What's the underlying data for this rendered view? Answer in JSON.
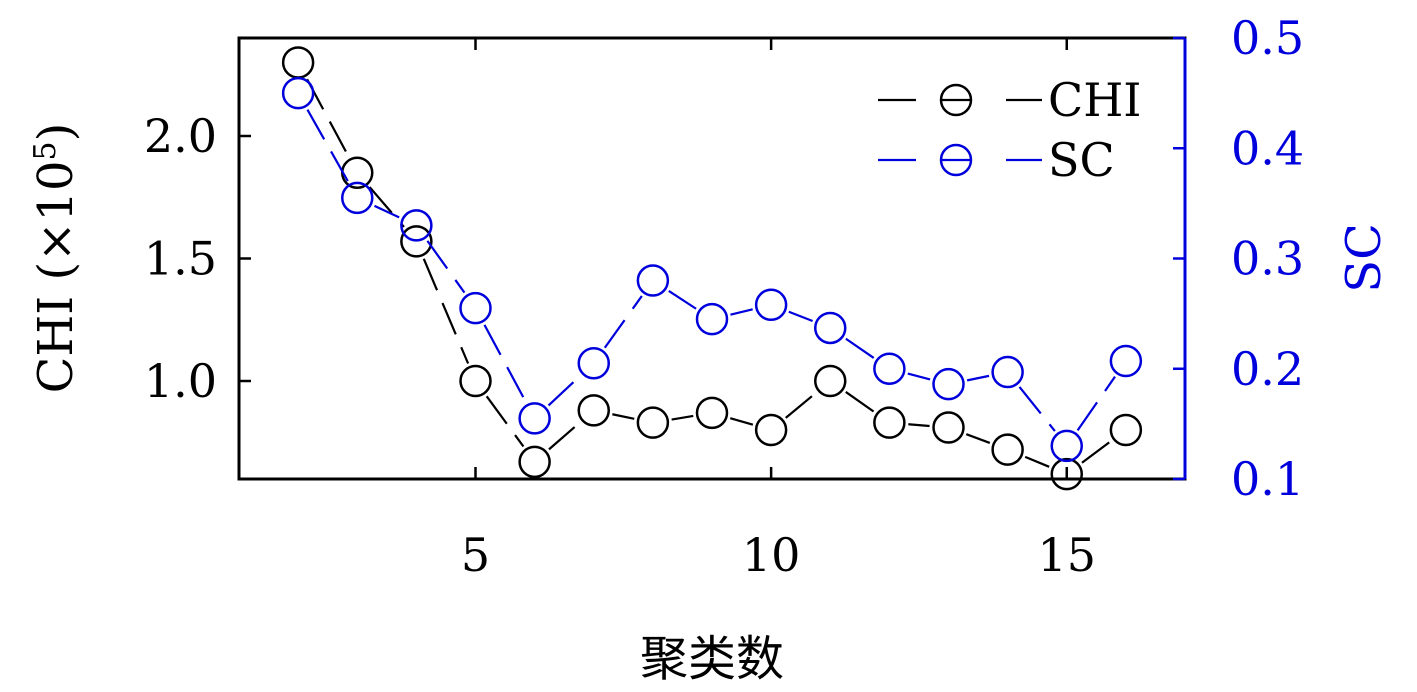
{
  "chart_data": {
    "type": "line",
    "xlabel": "聚类数",
    "ylabel_left": "CHI (×10",
    "ylabel_left_sup": "5",
    "ylabel_left_close": ")",
    "ylabel_right": "SC",
    "xlim": [
      1,
      17
    ],
    "ylim_left": [
      0.6,
      2.4
    ],
    "ylim_right": [
      0.1,
      0.5
    ],
    "x_ticks": [
      5,
      10,
      15
    ],
    "x_tick_labels": [
      "5",
      "10",
      "15"
    ],
    "y_left_ticks": [
      1.0,
      1.5,
      2.0
    ],
    "y_left_tick_labels": [
      "1.0",
      "1.5",
      "2.0"
    ],
    "y_right_ticks": [
      0.1,
      0.2,
      0.3,
      0.4,
      0.5
    ],
    "y_right_tick_labels": [
      "0.1",
      "0.2",
      "0.3",
      "0.4",
      "0.5"
    ],
    "legend_position": "top-right",
    "x": [
      2,
      3,
      4,
      5,
      6,
      7,
      8,
      9,
      10,
      11,
      12,
      13,
      14,
      15,
      16
    ],
    "series": [
      {
        "name": "CHI",
        "axis": "left",
        "color": "#000000",
        "marker": "circle-open",
        "line": "dashed",
        "values": [
          2.3,
          1.85,
          1.57,
          1.0,
          0.67,
          0.88,
          0.83,
          0.87,
          0.8,
          1.0,
          0.83,
          0.81,
          0.72,
          0.62,
          0.8
        ]
      },
      {
        "name": "SC",
        "axis": "right",
        "color": "#0000dd",
        "marker": "circle-open",
        "line": "dashed",
        "values": [
          0.45,
          0.355,
          0.33,
          0.255,
          0.155,
          0.205,
          0.28,
          0.245,
          0.258,
          0.237,
          0.2,
          0.186,
          0.197,
          0.13,
          0.207
        ]
      }
    ]
  }
}
